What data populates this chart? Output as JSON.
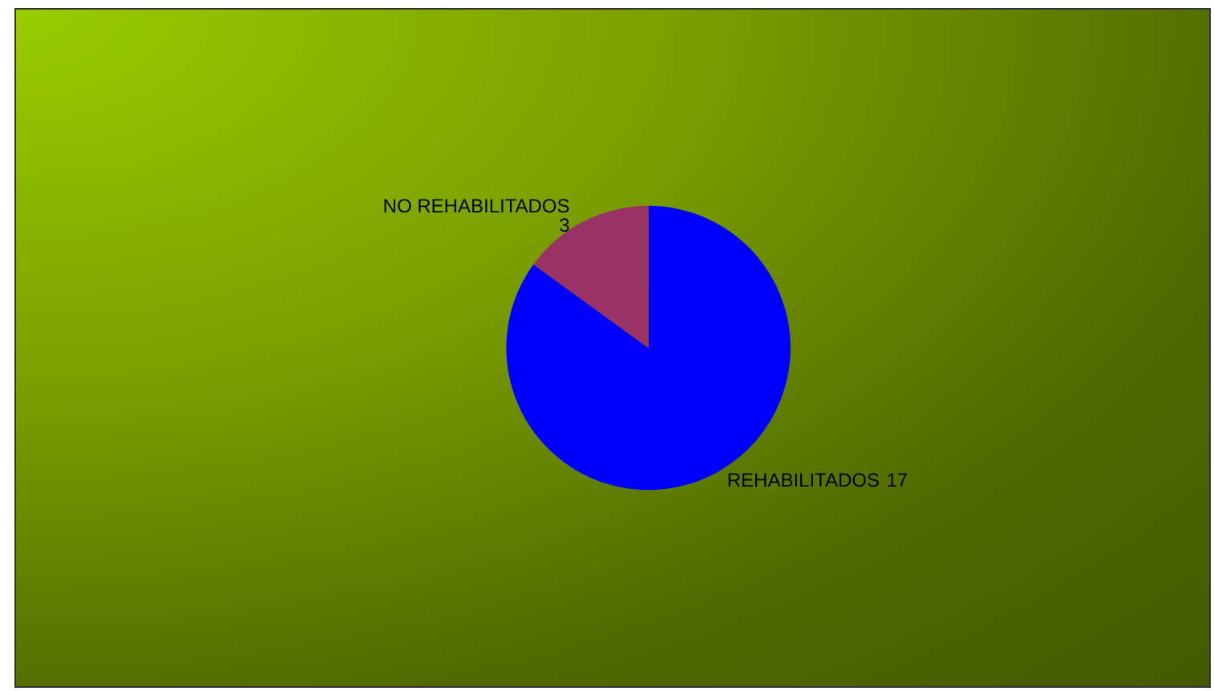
{
  "chart_data": {
    "type": "pie",
    "categories": [
      "REHABILITADOS",
      "NO REHABILITADOS"
    ],
    "values": [
      17,
      3
    ],
    "colors": [
      "#0000ff",
      "#993366"
    ],
    "data_labels": true,
    "legend": false
  }
}
